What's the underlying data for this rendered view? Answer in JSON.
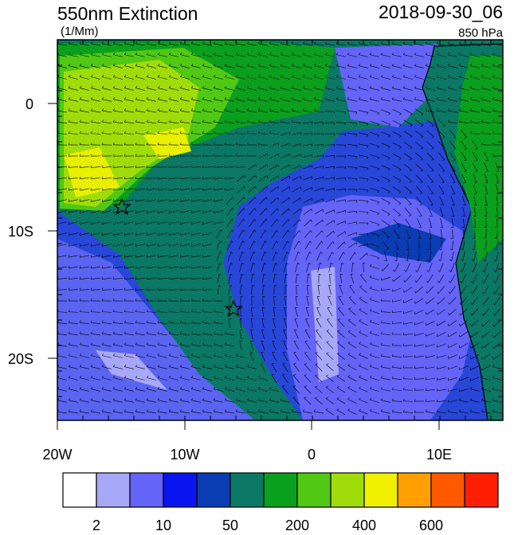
{
  "title": "550nm Extinction",
  "units": "(1/Mm)",
  "valid_time": "2018-09-30_06",
  "level": "850 hPa",
  "x_axis": {
    "labels": [
      "20W",
      "10W",
      "0",
      "10E"
    ]
  },
  "y_axis": {
    "labels": [
      "0",
      "10S",
      "20S"
    ]
  },
  "colorbar": {
    "colors": [
      "#ffffff",
      "#a8a8f8",
      "#6464f8",
      "#0a14f0",
      "#0a3cb4",
      "#0a7864",
      "#0aa01e",
      "#50c814",
      "#a0dc0a",
      "#f0f000",
      "#ffa000",
      "#ff5a00",
      "#ff1e00"
    ],
    "labels": [
      "2",
      "10",
      "50",
      "200",
      "400",
      "600"
    ]
  }
}
